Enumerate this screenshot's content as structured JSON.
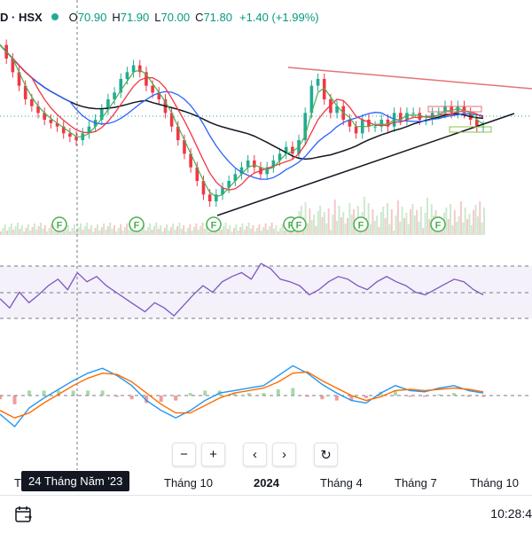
{
  "header": {
    "symbol": "D · HSX",
    "open_label": "O",
    "open": "70.90",
    "high_label": "H",
    "high": "71.90",
    "low_label": "L",
    "low": "70.00",
    "close_label": "C",
    "close": "71.80",
    "change": "+1.40 (+1.99%)",
    "status_color": "#22ab94"
  },
  "x_axis": {
    "labels": [
      "T",
      "Tháng 10",
      "2024",
      "Tháng 4",
      "Tháng 7",
      "Tháng 10"
    ],
    "crosshair_label": "24 Tháng Năm '23"
  },
  "toolbar": {
    "buttons": [
      {
        "name": "zoom-out-button",
        "glyph": "−"
      },
      {
        "name": "zoom-in-button",
        "glyph": "+"
      },
      {
        "name": "scroll-left-button",
        "glyph": "‹"
      },
      {
        "name": "scroll-right-button",
        "glyph": "›"
      },
      {
        "name": "reset-chart-button",
        "glyph": "↻"
      }
    ]
  },
  "footer": {
    "time": "10:28:4",
    "calendar_icon": "calendar-icon"
  },
  "colors": {
    "up": "#22ab94",
    "down": "#f23645",
    "ma_short": "#4caf50",
    "ma_mid": "#f23645",
    "ma_long": "#2962ff",
    "ma_200": "#131722",
    "rsi": "#7e57c2",
    "macd": "#2196f3",
    "signal": "#ff6d00",
    "resistance": "#e57373",
    "support": "#131722",
    "fund_marker": "#4caf50"
  },
  "chart_data": [
    {
      "type": "candlestick",
      "title": "",
      "price_series": [
        88,
        86,
        84,
        82,
        80,
        79,
        78,
        77,
        76.5,
        76,
        75,
        74.5,
        74,
        75,
        76,
        77,
        78.5,
        80,
        81,
        83,
        84,
        85,
        84,
        82,
        81,
        80,
        78,
        76,
        74,
        72,
        70,
        68,
        66,
        65,
        66,
        67,
        68,
        69,
        70,
        71,
        70,
        69,
        70,
        71,
        72,
        73,
        72,
        74,
        78,
        82,
        83,
        80,
        78,
        79,
        77,
        76,
        75,
        77,
        76,
        76,
        77,
        76,
        78,
        77,
        78,
        78,
        77,
        77,
        78,
        78,
        79,
        78,
        79,
        78,
        77,
        76,
        76
      ],
      "moving_averages": [
        "short",
        "mid",
        "long",
        "200"
      ],
      "resistance_line": "descending",
      "support_line": "ascending",
      "fund_markers": 7
    },
    {
      "type": "line",
      "title": "",
      "series": [
        {
          "values": [
            45,
            38,
            50,
            42,
            48,
            55,
            60,
            52,
            65,
            58,
            62,
            55,
            50,
            45,
            40,
            35,
            42,
            38,
            32,
            40,
            48,
            55,
            50,
            58,
            62,
            65,
            60,
            72,
            68,
            60,
            58,
            55,
            48,
            52,
            58,
            62,
            60,
            55,
            52,
            58,
            62,
            58,
            55,
            50,
            48,
            52,
            56,
            60,
            58,
            52,
            48
          ]
        }
      ]
    },
    {
      "type": "line",
      "title": "",
      "series": [
        {
          "values": [
            -1.5,
            -2.5,
            -1.0,
            -0.2,
            0.5,
            1.2,
            1.8,
            2.2,
            1.6,
            0.8,
            -0.4,
            -1.2,
            -1.8,
            -1.2,
            -0.4,
            0.2,
            0.4,
            0.6,
            0.8,
            1.6,
            2.4,
            1.8,
            0.9,
            0.2,
            -0.4,
            -0.6,
            0.2,
            0.8,
            0.4,
            0.3,
            0.6,
            0.8,
            0.4,
            0.2
          ]
        },
        {
          "values": [
            -1.2,
            -1.8,
            -1.4,
            -0.6,
            0.1,
            0.8,
            1.4,
            1.8,
            1.7,
            1.1,
            0.2,
            -0.7,
            -1.4,
            -1.4,
            -0.8,
            -0.2,
            0.2,
            0.4,
            0.6,
            1.1,
            1.8,
            1.9,
            1.2,
            0.6,
            0.0,
            -0.4,
            -0.1,
            0.4,
            0.5,
            0.4,
            0.5,
            0.6,
            0.5,
            0.3
          ]
        }
      ]
    }
  ]
}
